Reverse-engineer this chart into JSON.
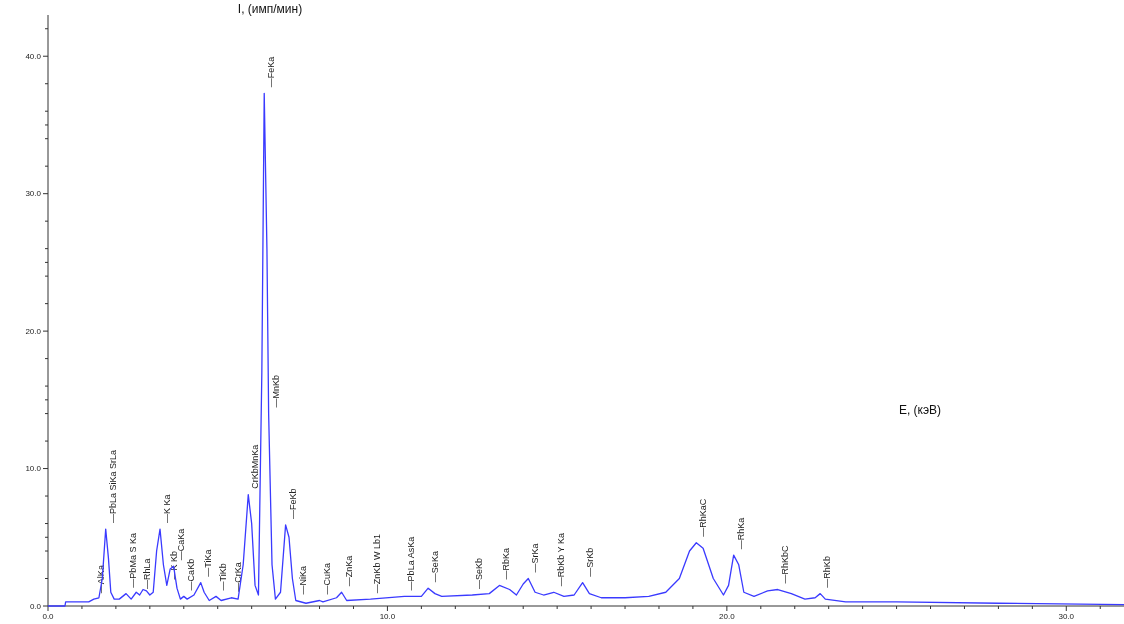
{
  "chart_data": {
    "type": "line",
    "xlabel": "E, (кэВ)",
    "ylabel": "I, (имп/мин)",
    "color": "#3a3aff",
    "marker": "none",
    "grid": false,
    "legend": false,
    "xlim": [
      0,
      31.7
    ],
    "ylim": [
      0,
      43
    ],
    "xticks": [
      {
        "value": 0,
        "label": "0.0"
      },
      {
        "value": 1,
        "label": null
      },
      {
        "value": 2,
        "label": null
      },
      {
        "value": 3,
        "label": null
      },
      {
        "value": 4,
        "label": null
      },
      {
        "value": 5,
        "label": null
      },
      {
        "value": 6,
        "label": null
      },
      {
        "value": 7,
        "label": null
      },
      {
        "value": 8,
        "label": null
      },
      {
        "value": 9,
        "label": null
      },
      {
        "value": 10,
        "label": "10.0"
      },
      {
        "value": 11,
        "label": null
      },
      {
        "value": 12,
        "label": null
      },
      {
        "value": 13,
        "label": null
      },
      {
        "value": 14,
        "label": null
      },
      {
        "value": 15,
        "label": null
      },
      {
        "value": 16,
        "label": null
      },
      {
        "value": 17,
        "label": null
      },
      {
        "value": 18,
        "label": null
      },
      {
        "value": 19,
        "label": null
      },
      {
        "value": 20,
        "label": "20.0"
      },
      {
        "value": 21,
        "label": null
      },
      {
        "value": 22,
        "label": null
      },
      {
        "value": 23,
        "label": null
      },
      {
        "value": 24,
        "label": null
      },
      {
        "value": 25,
        "label": null
      },
      {
        "value": 26,
        "label": null
      },
      {
        "value": 27,
        "label": null
      },
      {
        "value": 28,
        "label": null
      },
      {
        "value": 29,
        "label": null
      },
      {
        "value": 30,
        "label": "30.0"
      },
      {
        "value": 31,
        "label": null
      }
    ],
    "yticks": [
      {
        "value": 0,
        "label": "0.0"
      },
      {
        "value": 2,
        "label": null
      },
      {
        "value": 4,
        "label": null
      },
      {
        "value": 5,
        "label": null
      },
      {
        "value": 6,
        "label": null
      },
      {
        "value": 8,
        "label": null
      },
      {
        "value": 10,
        "label": "10.0"
      },
      {
        "value": 12,
        "label": null
      },
      {
        "value": 14,
        "label": null
      },
      {
        "value": 15,
        "label": null
      },
      {
        "value": 16,
        "label": null
      },
      {
        "value": 18,
        "label": null
      },
      {
        "value": 20,
        "label": "20.0"
      },
      {
        "value": 22,
        "label": null
      },
      {
        "value": 24,
        "label": null
      },
      {
        "value": 25,
        "label": null
      },
      {
        "value": 26,
        "label": null
      },
      {
        "value": 28,
        "label": null
      },
      {
        "value": 30,
        "label": "30.0"
      },
      {
        "value": 32,
        "label": null
      },
      {
        "value": 34,
        "label": null
      },
      {
        "value": 35,
        "label": null
      },
      {
        "value": 36,
        "label": null
      },
      {
        "value": 38,
        "label": null
      },
      {
        "value": 40,
        "label": "40.0"
      },
      {
        "value": 42,
        "label": null
      }
    ],
    "x": [
      0,
      0.5,
      0.52,
      1.2,
      1.35,
      1.5,
      1.6,
      1.7,
      1.78,
      1.85,
      1.95,
      2.1,
      2.3,
      2.45,
      2.6,
      2.7,
      2.8,
      2.9,
      3.0,
      3.1,
      3.2,
      3.3,
      3.4,
      3.5,
      3.6,
      3.7,
      3.8,
      3.9,
      4.0,
      4.1,
      4.3,
      4.5,
      4.6,
      4.75,
      4.95,
      5.1,
      5.4,
      5.6,
      5.75,
      5.9,
      6.0,
      6.1,
      6.2,
      6.3,
      6.37,
      6.45,
      6.5,
      6.6,
      6.7,
      6.85,
      7.0,
      7.1,
      7.2,
      7.3,
      7.6,
      8.0,
      8.1,
      8.5,
      8.65,
      8.8,
      9.5,
      10.5,
      11.0,
      11.2,
      11.4,
      11.6,
      12.5,
      13.0,
      13.3,
      13.6,
      13.8,
      14.0,
      14.15,
      14.35,
      14.6,
      14.9,
      15.2,
      15.5,
      15.75,
      15.95,
      16.3,
      17.0,
      17.7,
      18.2,
      18.6,
      18.9,
      19.1,
      19.3,
      19.6,
      19.9,
      20.05,
      20.2,
      20.35,
      20.5,
      20.8,
      21.2,
      21.5,
      21.9,
      22.3,
      22.6,
      22.75,
      22.9,
      23.5,
      25,
      28,
      31.7
    ],
    "values": [
      0,
      0,
      0.3,
      0.3,
      0.5,
      0.6,
      2,
      5.6,
      3.5,
      1,
      0.5,
      0.5,
      0.9,
      0.5,
      1.0,
      0.8,
      1.2,
      1.1,
      0.8,
      1.0,
      4,
      5.6,
      3,
      1.5,
      2.7,
      2.9,
      1.3,
      0.5,
      0.7,
      0.5,
      0.8,
      1.7,
      1.0,
      0.4,
      0.7,
      0.4,
      0.6,
      0.5,
      3,
      8.1,
      6,
      1.5,
      0.8,
      17,
      37.3,
      26,
      14,
      3,
      0.5,
      1,
      5.9,
      5,
      2,
      0.4,
      0.2,
      0.4,
      0.3,
      0.6,
      1.0,
      0.4,
      0.5,
      0.7,
      0.7,
      1.3,
      0.9,
      0.7,
      0.8,
      0.9,
      1.5,
      1.2,
      0.8,
      1.6,
      2.0,
      1.0,
      0.8,
      1.0,
      0.7,
      0.8,
      1.7,
      0.9,
      0.6,
      0.6,
      0.7,
      1.0,
      2,
      4,
      4.6,
      4.2,
      2,
      0.8,
      1.5,
      3.7,
      3,
      1,
      0.7,
      1.1,
      1.2,
      0.9,
      0.5,
      0.6,
      0.9,
      0.5,
      0.3,
      0.3,
      0.2,
      0.1
    ],
    "annotations": [
      {
        "text": "—AlKa",
        "x": 1.35,
        "y": 0.5
      },
      {
        "text": "—PbLa SiKa SrLa",
        "x": 1.7,
        "y": 5.6
      },
      {
        "text": "—PbMa S Ka",
        "x": 2.3,
        "y": 0.9
      },
      {
        "text": "—RhLa",
        "x": 2.7,
        "y": 0.8
      },
      {
        "text": "—K Ka",
        "x": 3.3,
        "y": 5.6
      },
      {
        "text": "—K Kb",
        "x": 3.5,
        "y": 1.5
      },
      {
        "text": "—CaKa",
        "x": 3.7,
        "y": 2.9
      },
      {
        "text": "—CaKb",
        "x": 4.0,
        "y": 0.7
      },
      {
        "text": "—TiKa",
        "x": 4.5,
        "y": 1.7
      },
      {
        "text": "—TiKb",
        "x": 4.95,
        "y": 0.7
      },
      {
        "text": "—CrKa",
        "x": 5.4,
        "y": 0.6
      },
      {
        "text": "CrKbMnKa",
        "x": 5.9,
        "y": 8.1
      },
      {
        "text": "—MnKb",
        "x": 6.5,
        "y": 14
      },
      {
        "text": "—FeKa",
        "x": 6.37,
        "y": 37.3
      },
      {
        "text": "—FeKb",
        "x": 7.0,
        "y": 5.9
      },
      {
        "text": "—NiKa",
        "x": 7.3,
        "y": 0.4
      },
      {
        "text": "—CuKa",
        "x": 8.0,
        "y": 0.4
      },
      {
        "text": "—ZnKa",
        "x": 8.65,
        "y": 1.0
      },
      {
        "text": "—ZnKb W Lb1",
        "x": 9.5,
        "y": 0.5
      },
      {
        "text": "—PbLa AsKa",
        "x": 10.5,
        "y": 0.7
      },
      {
        "text": "—SeKa",
        "x": 11.2,
        "y": 1.3
      },
      {
        "text": "—SeKb",
        "x": 12.5,
        "y": 0.8
      },
      {
        "text": "—RbKa",
        "x": 13.3,
        "y": 1.5
      },
      {
        "text": "—SrKa",
        "x": 14.15,
        "y": 2.0
      },
      {
        "text": "—RbKb Y Ka",
        "x": 14.9,
        "y": 1.0
      },
      {
        "text": "—SrKb",
        "x": 15.75,
        "y": 1.7
      },
      {
        "text": "—RhKaC",
        "x": 19.1,
        "y": 4.6
      },
      {
        "text": "—RhKa",
        "x": 20.2,
        "y": 3.7
      },
      {
        "text": "—RhKbC",
        "x": 21.5,
        "y": 1.2
      },
      {
        "text": "—RhKb",
        "x": 22.75,
        "y": 0.9
      }
    ]
  }
}
